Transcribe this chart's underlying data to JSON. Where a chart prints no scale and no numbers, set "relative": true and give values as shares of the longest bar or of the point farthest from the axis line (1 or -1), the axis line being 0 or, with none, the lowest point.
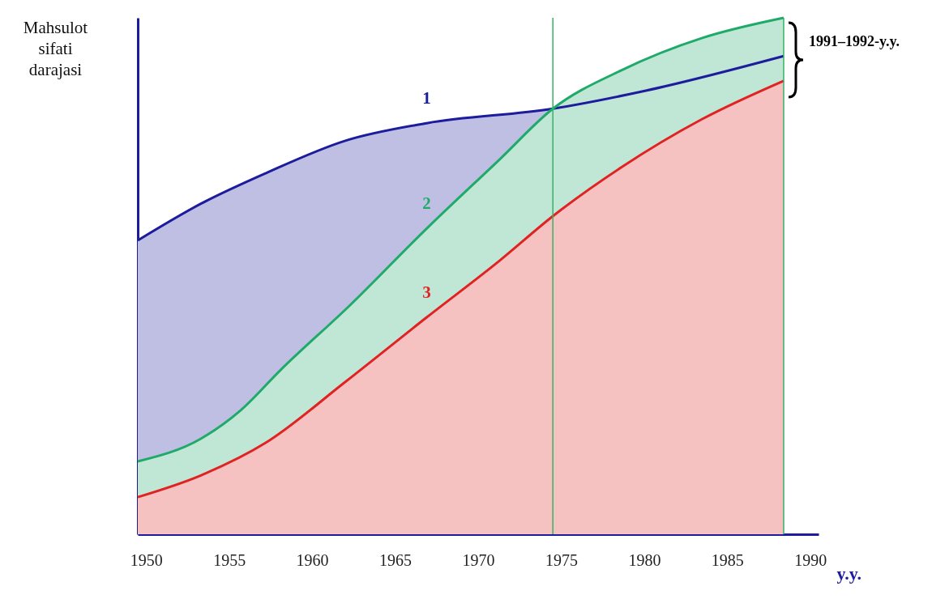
{
  "chart_data": {
    "type": "area",
    "relative": true,
    "xlabel": "y.y.",
    "ylabel": "Mahsulot sifati darajasi",
    "xlim": [
      1949.5,
      1990.5
    ],
    "xticks": [
      1950,
      1955,
      1960,
      1965,
      1970,
      1975,
      1980,
      1985,
      1990
    ],
    "annotations": [
      "1991–1992-y.y."
    ],
    "ref_lines": [
      {
        "axis": "x",
        "value": 1974.5,
        "color": "#33b366"
      },
      {
        "axis": "x",
        "value": 1988.4,
        "color": "#33b366"
      }
    ],
    "grid": false,
    "series": [
      {
        "name": "1",
        "color": "#1c1c9c",
        "x": [
          1949.5,
          1953.3,
          1957.2,
          1962.0,
          1966.9,
          1974.5,
          1980.1,
          1988.4
        ],
        "values": [
          0.569,
          0.64,
          0.699,
          0.762,
          0.796,
          0.824,
          0.859,
          0.926
        ]
      },
      {
        "name": "2",
        "color": "#1faa6a",
        "x": [
          1949.5,
          1953.3,
          1955.7,
          1958.1,
          1962.3,
          1966.9,
          1971.3,
          1974.5,
          1978.6,
          1983.5,
          1988.4
        ],
        "values": [
          0.141,
          0.185,
          0.24,
          0.318,
          0.444,
          0.592,
          0.726,
          0.824,
          0.898,
          0.961,
          1
        ]
      },
      {
        "name": "3",
        "color": "#e02222",
        "x": [
          1949.5,
          1953.3,
          1957.2,
          1962.0,
          1966.9,
          1971.3,
          1974.5,
          1978.6,
          1983.5,
          1988.4
        ],
        "values": [
          0.072,
          0.114,
          0.177,
          0.295,
          0.42,
          0.53,
          0.616,
          0.71,
          0.804,
          0.878
        ]
      }
    ]
  }
}
